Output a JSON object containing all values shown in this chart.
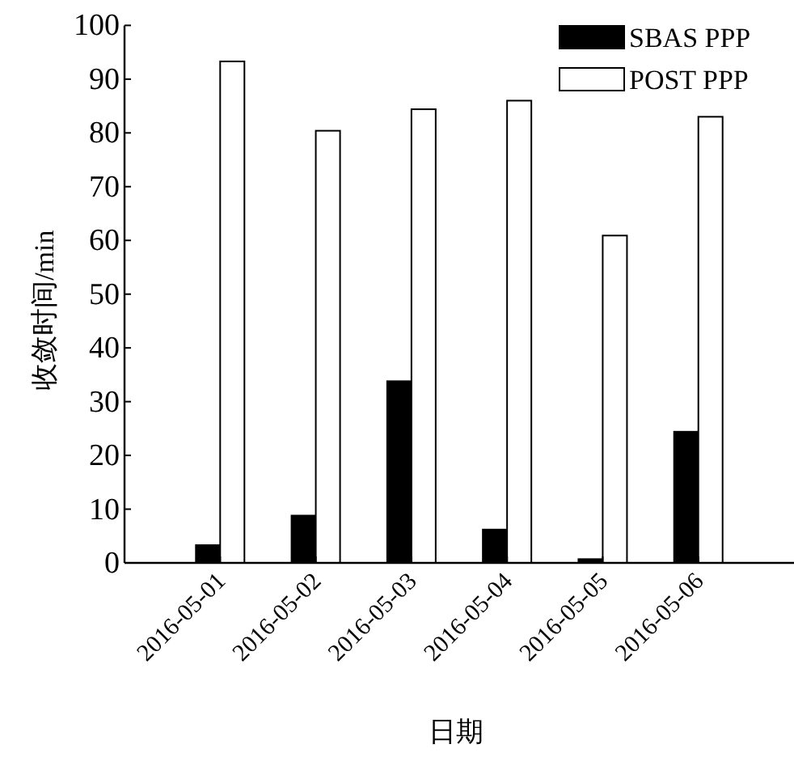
{
  "chart_data": {
    "type": "bar",
    "xlabel": "日期",
    "ylabel": "收敛时间/min",
    "categories": [
      "2016-05-01",
      "2016-05-02",
      "2016-05-03",
      "2016-05-04",
      "2016-05-05",
      "2016-05-06"
    ],
    "series": [
      {
        "name": "SBAS PPP",
        "color": "#000000",
        "values": [
          3.3,
          8.8,
          33.8,
          6.2,
          0.7,
          24.4
        ]
      },
      {
        "name": "POST PPP",
        "color": "#ffffff",
        "values": [
          93.3,
          80.4,
          84.4,
          86.0,
          60.9,
          83.0
        ]
      }
    ],
    "ylim": [
      0,
      100
    ],
    "yticks": [
      0,
      10,
      20,
      30,
      40,
      50,
      60,
      70,
      80,
      90,
      100
    ],
    "legend": "top right",
    "grid": false
  }
}
